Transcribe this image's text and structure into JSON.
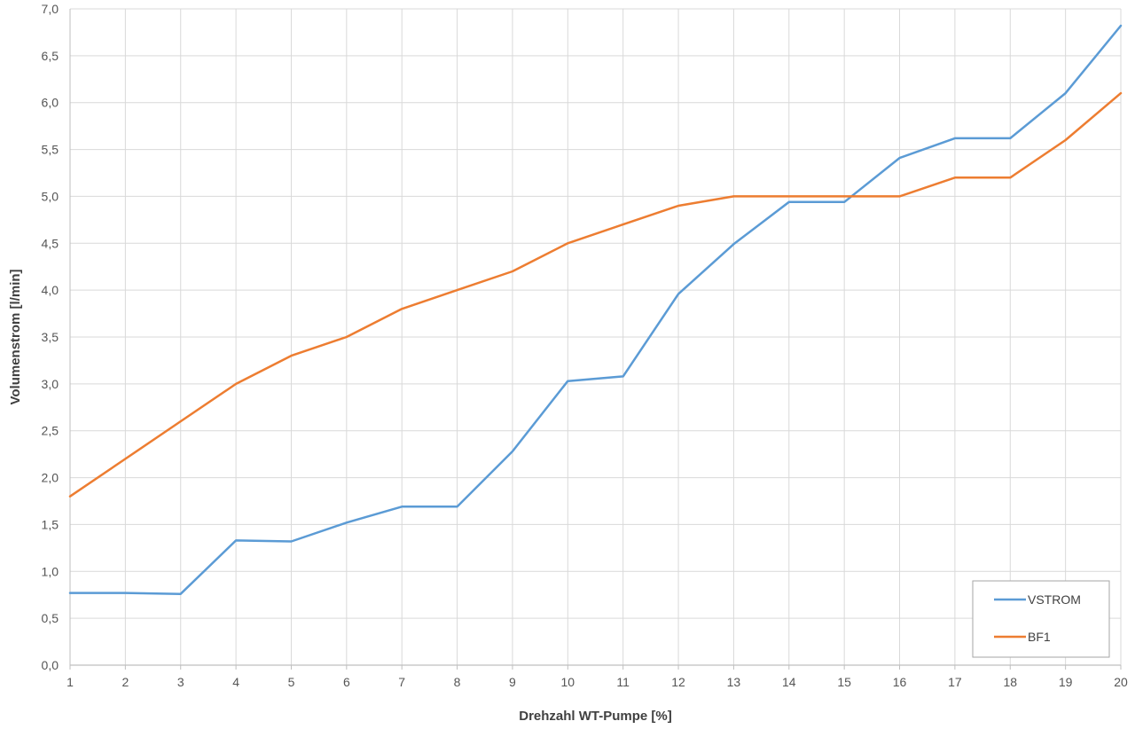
{
  "chart_data": {
    "type": "line",
    "title": "",
    "xlabel": "Drehzahl WT-Pumpe [%]",
    "ylabel": "Volumenstrom [l/min]",
    "x": [
      1,
      2,
      3,
      4,
      5,
      6,
      7,
      8,
      9,
      10,
      11,
      12,
      13,
      14,
      15,
      16,
      17,
      18,
      19,
      20
    ],
    "xlim": [
      1,
      20
    ],
    "ylim": [
      0,
      7
    ],
    "y_ticks": [
      "0,0",
      "0,5",
      "1,0",
      "1,5",
      "2,0",
      "2,5",
      "3,0",
      "3,5",
      "4,0",
      "4,5",
      "5,0",
      "5,5",
      "6,0",
      "6,5",
      "7,0"
    ],
    "y_tick_step": 0.5,
    "grid": true,
    "legend_position": "bottom-right",
    "series": [
      {
        "name": "VSTROM",
        "color": "#5b9bd5",
        "values": [
          0.77,
          0.77,
          0.76,
          1.33,
          1.32,
          1.52,
          1.69,
          1.69,
          2.28,
          3.03,
          3.08,
          3.96,
          4.49,
          4.94,
          4.94,
          5.41,
          5.62,
          5.62,
          6.1,
          6.82
        ]
      },
      {
        "name": "BF1",
        "color": "#ed7d31",
        "values": [
          1.8,
          2.2,
          2.6,
          3.0,
          3.3,
          3.5,
          3.8,
          4.0,
          4.2,
          4.5,
          4.7,
          4.9,
          5.0,
          5.0,
          5.0,
          5.0,
          5.2,
          5.2,
          5.6,
          6.1
        ]
      }
    ]
  }
}
